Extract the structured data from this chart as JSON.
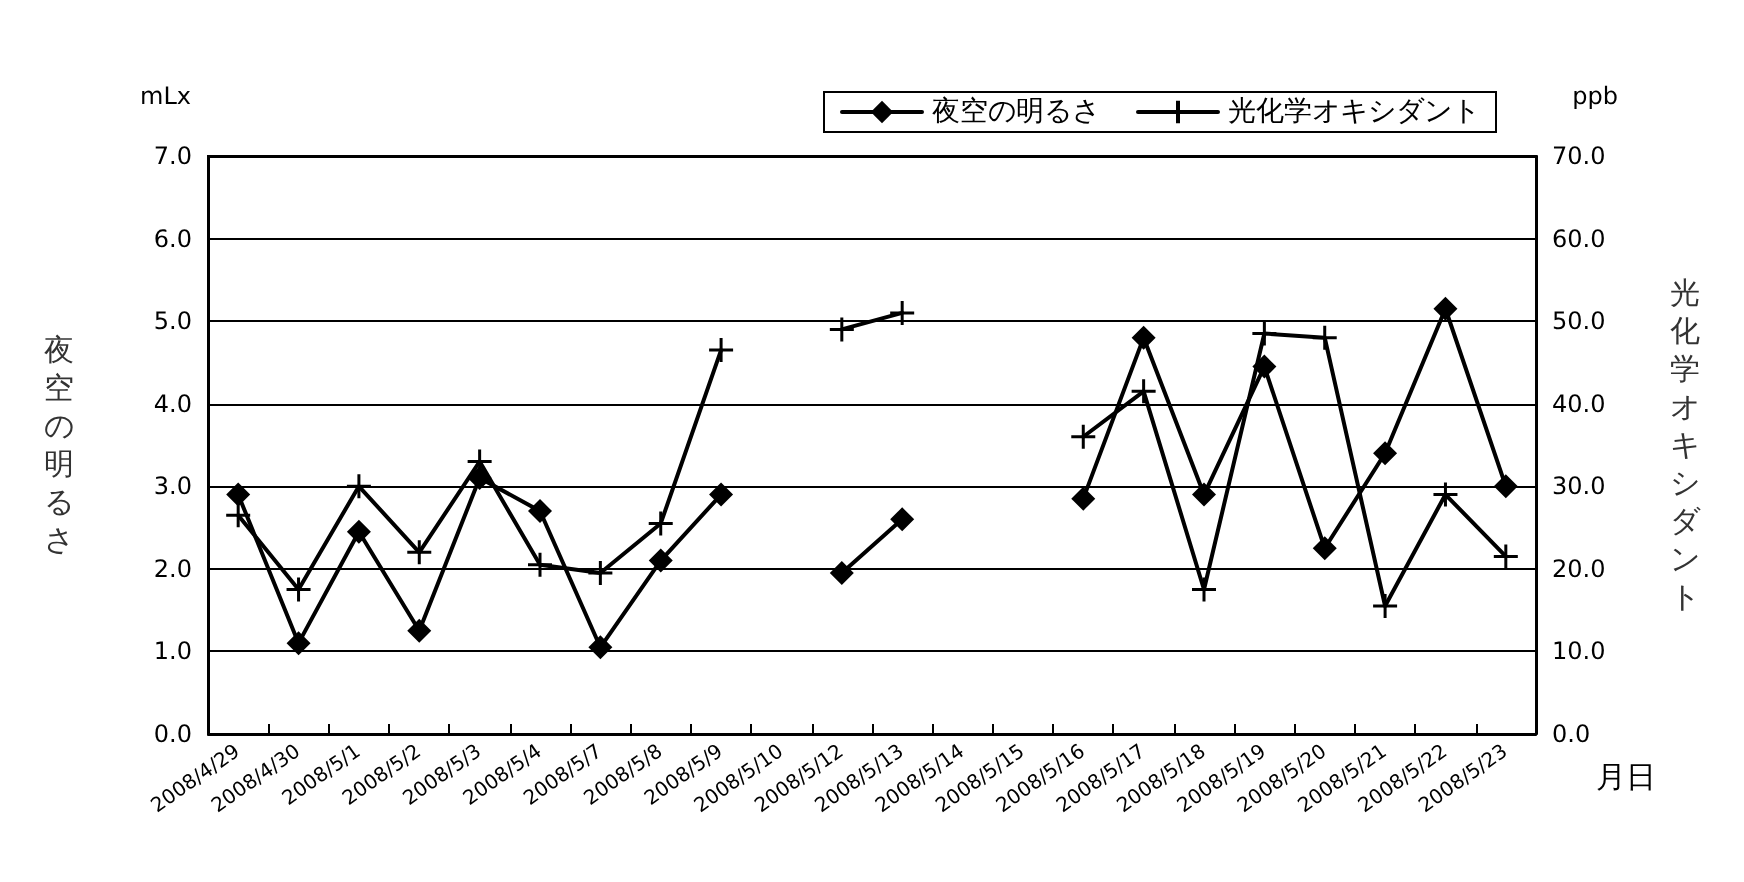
{
  "chart_data": {
    "type": "line",
    "categories": [
      "2008/4/29",
      "2008/4/30",
      "2008/5/1",
      "2008/5/2",
      "2008/5/3",
      "2008/5/4",
      "2008/5/7",
      "2008/5/8",
      "2008/5/9",
      "2008/5/10",
      "2008/5/12",
      "2008/5/13",
      "2008/5/14",
      "2008/5/15",
      "2008/5/16",
      "2008/5/17",
      "2008/5/18",
      "2008/5/19",
      "2008/5/20",
      "2008/5/21",
      "2008/5/22",
      "2008/5/23"
    ],
    "series": [
      {
        "name": "夜空の明るさ",
        "color": "#000000",
        "marker": "diamond",
        "values": [
          2.9,
          1.1,
          2.45,
          1.25,
          3.1,
          2.7,
          1.05,
          2.1,
          2.9,
          null,
          1.95,
          2.6,
          null,
          null,
          2.85,
          4.8,
          2.9,
          4.45,
          2.25,
          3.4,
          5.15,
          3.0
        ]
      },
      {
        "name": "光化学オキシダント",
        "color": "#000000",
        "marker": "cross",
        "axis": "y2",
        "values": [
          26.5,
          17.5,
          30,
          22,
          33,
          20.5,
          19.5,
          25.5,
          46.5,
          null,
          49,
          51,
          null,
          null,
          36,
          41.5,
          17.5,
          48.5,
          48,
          15.5,
          29,
          21.5
        ]
      }
    ],
    "xlabel": "月日",
    "ylabel": "夜空の明るさ",
    "y2label": "光化学オキシダント",
    "annotations": [
      "mLx",
      "ppb"
    ],
    "ylim": [
      0,
      7
    ],
    "yticks": [
      {
        "value": 0,
        "label": "0.0"
      },
      {
        "value": 1,
        "label": "1.0"
      },
      {
        "value": 2,
        "label": "2.0"
      },
      {
        "value": 3,
        "label": "3.0"
      },
      {
        "value": 4,
        "label": "4.0"
      },
      {
        "value": 5,
        "label": "5.0"
      },
      {
        "value": 6,
        "label": "6.0"
      },
      {
        "value": 7,
        "label": "7.0"
      }
    ],
    "y2lim": [
      0,
      70
    ],
    "y2ticks": [
      {
        "value": 0,
        "label": "0.0"
      },
      {
        "value": 10,
        "label": "10.0"
      },
      {
        "value": 20,
        "label": "20.0"
      },
      {
        "value": 30,
        "label": "30.0"
      },
      {
        "value": 40,
        "label": "40.0"
      },
      {
        "value": 50,
        "label": "50.0"
      },
      {
        "value": 60,
        "label": "60.0"
      },
      {
        "value": 70,
        "label": "70.0"
      }
    ],
    "grid": "y",
    "legend": "top right",
    "line_style": "solid"
  }
}
